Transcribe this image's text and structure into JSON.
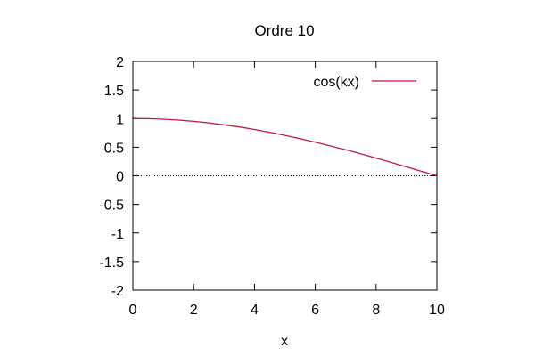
{
  "chart_data": {
    "type": "line",
    "title": "Ordre 10",
    "xlabel": "x",
    "ylabel": "",
    "xlim": [
      0,
      10
    ],
    "ylim": [
      -2,
      2
    ],
    "x_ticks": [
      "0",
      "2",
      "4",
      "6",
      "8",
      "10"
    ],
    "y_ticks": [
      "2",
      "1.5",
      "1",
      "0.5",
      "0",
      "-0.5",
      "-1",
      "-1.5",
      "-2"
    ],
    "grid": false,
    "zero_line": "dotted",
    "legend_position": "top-right",
    "series": [
      {
        "name": "cos(kx)",
        "color": "#c0183a",
        "x": [
          0,
          0.5,
          1,
          1.5,
          2,
          2.5,
          3,
          3.5,
          4,
          4.5,
          5,
          5.5,
          6,
          6.5,
          7,
          7.5,
          8,
          8.5,
          9,
          9.5,
          10
        ],
        "y": [
          1.0,
          0.997,
          0.988,
          0.972,
          0.951,
          0.924,
          0.891,
          0.853,
          0.809,
          0.761,
          0.707,
          0.649,
          0.588,
          0.522,
          0.454,
          0.383,
          0.309,
          0.233,
          0.156,
          0.078,
          0.0
        ]
      }
    ]
  }
}
